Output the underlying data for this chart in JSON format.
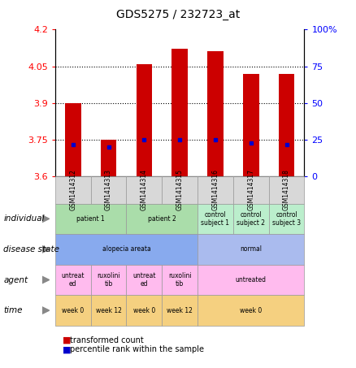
{
  "title": "GDS5275 / 232723_at",
  "samples": [
    "GSM1414312",
    "GSM1414313",
    "GSM1414314",
    "GSM1414315",
    "GSM1414316",
    "GSM1414317",
    "GSM1414318"
  ],
  "transformed_count": [
    3.9,
    3.75,
    4.06,
    4.12,
    4.11,
    4.02,
    4.02
  ],
  "percentile_rank": [
    22,
    20,
    25,
    25,
    25,
    23,
    22
  ],
  "ylim_left": [
    3.6,
    4.2
  ],
  "ylim_right": [
    0,
    100
  ],
  "yticks_left": [
    3.6,
    3.75,
    3.9,
    4.05,
    4.2
  ],
  "ytick_labels_left": [
    "3.6",
    "3.75",
    "3.9",
    "4.05",
    "4.2"
  ],
  "yticks_right": [
    0,
    25,
    50,
    75,
    100
  ],
  "ytick_labels_right": [
    "0",
    "25",
    "50",
    "75",
    "100%"
  ],
  "bar_color": "#cc0000",
  "dot_color": "#0000cc",
  "row_labels": [
    "individual",
    "disease state",
    "agent",
    "time"
  ],
  "individual_groups": [
    {
      "label": "patient 1",
      "span": [
        0,
        2
      ],
      "color": "#aaddaa"
    },
    {
      "label": "patient 2",
      "span": [
        2,
        4
      ],
      "color": "#aaddaa"
    },
    {
      "label": "control\nsubject 1",
      "span": [
        4,
        5
      ],
      "color": "#bbeecc"
    },
    {
      "label": "control\nsubject 2",
      "span": [
        5,
        6
      ],
      "color": "#bbeecc"
    },
    {
      "label": "control\nsubject 3",
      "span": [
        6,
        7
      ],
      "color": "#bbeecc"
    }
  ],
  "disease_groups": [
    {
      "label": "alopecia areata",
      "span": [
        0,
        4
      ],
      "color": "#88aaee"
    },
    {
      "label": "normal",
      "span": [
        4,
        7
      ],
      "color": "#aabbee"
    }
  ],
  "agent_groups": [
    {
      "label": "untreat\ned",
      "span": [
        0,
        1
      ],
      "color": "#ffbbee"
    },
    {
      "label": "ruxolini\ntib",
      "span": [
        1,
        2
      ],
      "color": "#ffbbee"
    },
    {
      "label": "untreat\ned",
      "span": [
        2,
        3
      ],
      "color": "#ffbbee"
    },
    {
      "label": "ruxolini\ntib",
      "span": [
        3,
        4
      ],
      "color": "#ffbbee"
    },
    {
      "label": "untreated",
      "span": [
        4,
        7
      ],
      "color": "#ffbbee"
    }
  ],
  "time_groups": [
    {
      "label": "week 0",
      "span": [
        0,
        1
      ],
      "color": "#f5d080"
    },
    {
      "label": "week 12",
      "span": [
        1,
        2
      ],
      "color": "#f5d080"
    },
    {
      "label": "week 0",
      "span": [
        2,
        3
      ],
      "color": "#f5d080"
    },
    {
      "label": "week 12",
      "span": [
        3,
        4
      ],
      "color": "#f5d080"
    },
    {
      "label": "week 0",
      "span": [
        4,
        7
      ],
      "color": "#f5d080"
    }
  ]
}
